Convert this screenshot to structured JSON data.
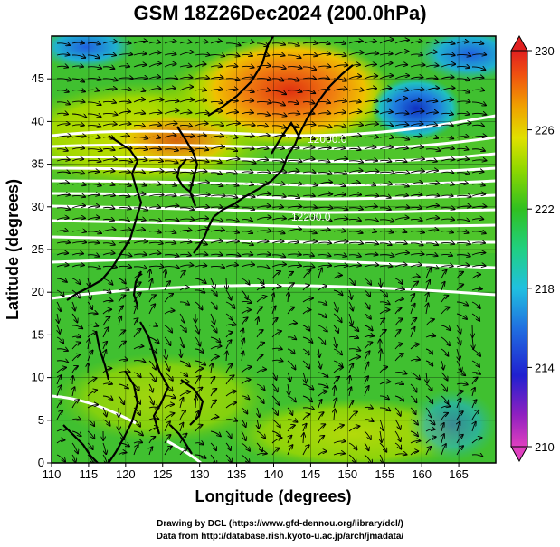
{
  "title": "GSM 18Z26Dec2024 (200.0hPa)",
  "x_axis": {
    "label": "Longitude (degrees)",
    "ticks": [
      "110",
      "115",
      "120",
      "125",
      "130",
      "135",
      "140",
      "145",
      "150",
      "155",
      "160",
      "165"
    ]
  },
  "y_axis": {
    "label": "Latitude  (degrees)",
    "ticks": [
      "0",
      "5",
      "10",
      "15",
      "20",
      "25",
      "30",
      "35",
      "40",
      "45"
    ]
  },
  "colorbar": {
    "labels": [
      "230",
      "226",
      "222",
      "218",
      "214",
      "210"
    ],
    "min": 210,
    "max": 230,
    "colors": [
      "#e040c0",
      "#8020c0",
      "#2020d0",
      "#2070e0",
      "#20c0e0",
      "#20d080",
      "#30c020",
      "#80d010",
      "#c0e000",
      "#f0d000",
      "#f09000",
      "#f05010",
      "#e02020"
    ]
  },
  "contour_labels": [
    "12000.0",
    "12200.0"
  ],
  "credits": {
    "line1": "Drawing by DCL (https://www.gfd-dennou.org/library/dcl/)",
    "line2": "Data from http://database.rish.kyoto-u.ac.jp/arch/jmadata/"
  },
  "colors": {
    "background_field": "#40c030",
    "high_temp": "#f07010",
    "low_temp": "#2040d0",
    "contour": "#ffffff",
    "coastline": "#000000"
  }
}
